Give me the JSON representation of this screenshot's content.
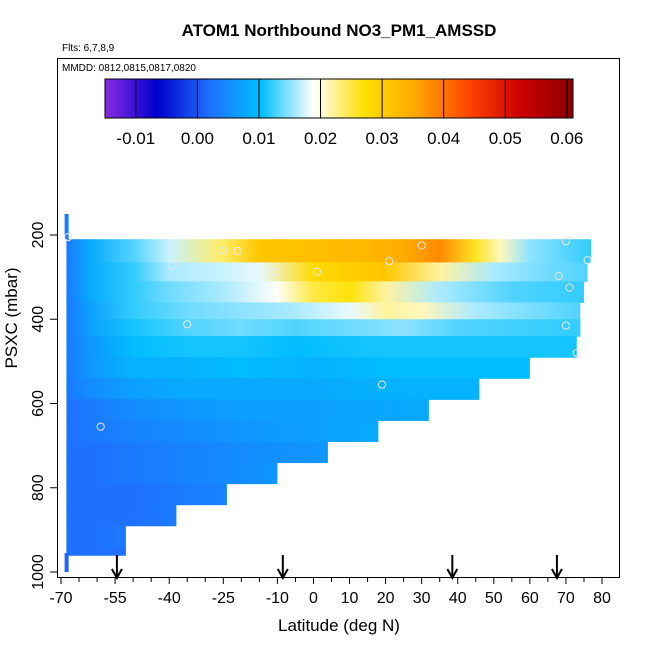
{
  "chart_data": {
    "type": "heatmap",
    "title": "ATOM1 Northbound NO3_PM1_AMSSD",
    "info_lines": [
      "Flts: 6,7,8,9",
      "MMDD: 0812,0815,0817,0820"
    ],
    "xlabel": "Latitude (deg N)",
    "ylabel": "PSXC (mbar)",
    "x_ticks": [
      "-70",
      "-55",
      "-40",
      "-25",
      "-10",
      "0",
      "10",
      "20",
      "30",
      "40",
      "50",
      "60",
      "70",
      "80"
    ],
    "y_ticks": [
      "200",
      "400",
      "600",
      "800",
      "1000"
    ],
    "y_axis_inverted": true,
    "colorbar": {
      "range": [
        -0.015,
        0.061
      ],
      "tick_labels": [
        "-0.01",
        "0.00",
        "0.01",
        "0.02",
        "0.03",
        "0.04",
        "0.05",
        "0.06"
      ],
      "colors": [
        "#8a2be2",
        "#0000cd",
        "#1e6fff",
        "#00bfff",
        "#ffffff",
        "#ffe000",
        "#ffa500",
        "#ff4500",
        "#cc0000",
        "#8b0000"
      ]
    },
    "profile_latitudes": [
      -54.5,
      -8.5,
      38.5,
      67.5
    ],
    "rows": [
      {
        "p_top": 210,
        "p_bot": 265,
        "lat_end": 77,
        "values": [
          [
            -68.5,
            0.003
          ],
          [
            -62,
            0.008
          ],
          [
            -50,
            0.013
          ],
          [
            -40,
            0.017
          ],
          [
            -25,
            0.024
          ],
          [
            -15,
            0.031
          ],
          [
            0,
            0.032
          ],
          [
            15,
            0.033
          ],
          [
            25,
            0.035
          ],
          [
            35,
            0.038
          ],
          [
            45,
            0.026
          ],
          [
            52,
            0.021
          ],
          [
            60,
            0.015
          ],
          [
            77,
            0.012
          ]
        ]
      },
      {
        "p_top": 265,
        "p_bot": 310,
        "lat_end": 76,
        "values": [
          [
            -68.5,
            0.003
          ],
          [
            -62,
            0.008
          ],
          [
            -50,
            0.012
          ],
          [
            -40,
            0.016
          ],
          [
            -25,
            0.017
          ],
          [
            -15,
            0.018
          ],
          [
            0,
            0.028
          ],
          [
            10,
            0.03
          ],
          [
            20,
            0.031
          ],
          [
            35,
            0.022
          ],
          [
            50,
            0.016
          ],
          [
            65,
            0.014
          ],
          [
            76,
            0.013
          ]
        ]
      },
      {
        "p_top": 310,
        "p_bot": 360,
        "lat_end": 75,
        "values": [
          [
            -68.5,
            0.003
          ],
          [
            -62,
            0.008
          ],
          [
            -50,
            0.012
          ],
          [
            -40,
            0.014
          ],
          [
            -25,
            0.016
          ],
          [
            -10,
            0.019
          ],
          [
            0,
            0.025
          ],
          [
            10,
            0.027
          ],
          [
            20,
            0.022
          ],
          [
            35,
            0.016
          ],
          [
            55,
            0.013
          ],
          [
            75,
            0.012
          ]
        ]
      },
      {
        "p_top": 360,
        "p_bot": 400,
        "lat_end": 74,
        "values": [
          [
            -68.5,
            0.003
          ],
          [
            -62,
            0.007
          ],
          [
            -50,
            0.012
          ],
          [
            -35,
            0.014
          ],
          [
            -20,
            0.015
          ],
          [
            -5,
            0.016
          ],
          [
            10,
            0.018
          ],
          [
            20,
            0.022
          ],
          [
            30,
            0.021
          ],
          [
            45,
            0.016
          ],
          [
            74,
            0.013
          ]
        ]
      },
      {
        "p_top": 400,
        "p_bot": 440,
        "lat_end": 74,
        "values": [
          [
            -68.5,
            0.003
          ],
          [
            -62,
            0.007
          ],
          [
            -50,
            0.011
          ],
          [
            -35,
            0.013
          ],
          [
            -20,
            0.014
          ],
          [
            -5,
            0.013
          ],
          [
            10,
            0.014
          ],
          [
            25,
            0.015
          ],
          [
            40,
            0.013
          ],
          [
            74,
            0.012
          ]
        ]
      },
      {
        "p_top": 440,
        "p_bot": 490,
        "lat_end": 73,
        "values": [
          [
            -68.5,
            0.003
          ],
          [
            -62,
            0.006
          ],
          [
            -50,
            0.01
          ],
          [
            -35,
            0.011
          ],
          [
            -20,
            0.011
          ],
          [
            -5,
            0.01
          ],
          [
            15,
            0.011
          ],
          [
            40,
            0.011
          ],
          [
            73,
            0.011
          ]
        ]
      },
      {
        "p_top": 490,
        "p_bot": 540,
        "lat_end": 60,
        "values": [
          [
            -68.5,
            0.003
          ],
          [
            -62,
            0.006
          ],
          [
            -50,
            0.009
          ],
          [
            -35,
            0.009
          ],
          [
            -20,
            0.01
          ],
          [
            0,
            0.009
          ],
          [
            20,
            0.01
          ],
          [
            40,
            0.01
          ],
          [
            60,
            0.01
          ]
        ]
      },
      {
        "p_top": 540,
        "p_bot": 590,
        "lat_end": 46,
        "values": [
          [
            -68.5,
            0.003
          ],
          [
            -62,
            0.005
          ],
          [
            -50,
            0.007
          ],
          [
            -35,
            0.008
          ],
          [
            -20,
            0.008
          ],
          [
            0,
            0.008
          ],
          [
            20,
            0.009
          ],
          [
            46,
            0.009
          ]
        ]
      },
      {
        "p_top": 590,
        "p_bot": 640,
        "lat_end": 32,
        "values": [
          [
            -68.5,
            0.002
          ],
          [
            -62,
            0.003
          ],
          [
            -50,
            0.005
          ],
          [
            -35,
            0.006
          ],
          [
            -20,
            0.007
          ],
          [
            0,
            0.007
          ],
          [
            32,
            0.008
          ]
        ]
      },
      {
        "p_top": 640,
        "p_bot": 690,
        "lat_end": 18,
        "values": [
          [
            -68.5,
            0.002
          ],
          [
            -62,
            0.003
          ],
          [
            -50,
            0.004
          ],
          [
            -35,
            0.005
          ],
          [
            -20,
            0.006
          ],
          [
            0,
            0.007
          ],
          [
            18,
            0.008
          ]
        ]
      },
      {
        "p_top": 690,
        "p_bot": 740,
        "lat_end": 4,
        "values": [
          [
            -68.5,
            0.002
          ],
          [
            -62,
            0.002
          ],
          [
            -50,
            0.003
          ],
          [
            -35,
            0.004
          ],
          [
            -20,
            0.005
          ],
          [
            4,
            0.006
          ]
        ]
      },
      {
        "p_top": 740,
        "p_bot": 790,
        "lat_end": -10,
        "values": [
          [
            -68.5,
            0.002
          ],
          [
            -62,
            0.002
          ],
          [
            -50,
            0.003
          ],
          [
            -35,
            0.004
          ],
          [
            -20,
            0.005
          ],
          [
            -10,
            0.006
          ]
        ]
      },
      {
        "p_top": 790,
        "p_bot": 840,
        "lat_end": -24,
        "values": [
          [
            -68.5,
            0.002
          ],
          [
            -62,
            0.002
          ],
          [
            -50,
            0.002
          ],
          [
            -38,
            0.003
          ],
          [
            -24,
            0.004
          ]
        ]
      },
      {
        "p_top": 840,
        "p_bot": 890,
        "lat_end": -38,
        "values": [
          [
            -68.5,
            0.002
          ],
          [
            -62,
            0.002
          ],
          [
            -52,
            0.002
          ],
          [
            -38,
            0.003
          ]
        ]
      },
      {
        "p_top": 890,
        "p_bot": 940,
        "lat_end": -52,
        "values": [
          [
            -68.5,
            0.002
          ],
          [
            -62,
            0.002
          ],
          [
            -52,
            0.003
          ]
        ]
      },
      {
        "p_top": 940,
        "p_bot": 960,
        "lat_end": -52,
        "values": [
          [
            -68.5,
            0.002
          ],
          [
            -60,
            0.002
          ],
          [
            -52,
            0.002
          ]
        ]
      }
    ],
    "edge_strip": [
      {
        "p_top": 150,
        "p_bot": 210,
        "value": 0.003
      },
      {
        "p_top": 955,
        "p_bot": 1000,
        "value": 0.001
      }
    ],
    "sample_points": [
      [
        -68,
        205
      ],
      [
        -25,
        237
      ],
      [
        -21,
        238
      ],
      [
        -39,
        272
      ],
      [
        -11,
        287
      ],
      [
        1,
        287
      ],
      [
        21,
        262
      ],
      [
        30,
        225
      ],
      [
        42,
        299
      ],
      [
        70,
        215
      ],
      [
        76,
        260
      ],
      [
        68,
        298
      ],
      [
        71,
        325
      ],
      [
        -35,
        412
      ],
      [
        70,
        415
      ],
      [
        73,
        480
      ],
      [
        19,
        555
      ],
      [
        -59,
        655
      ]
    ]
  }
}
